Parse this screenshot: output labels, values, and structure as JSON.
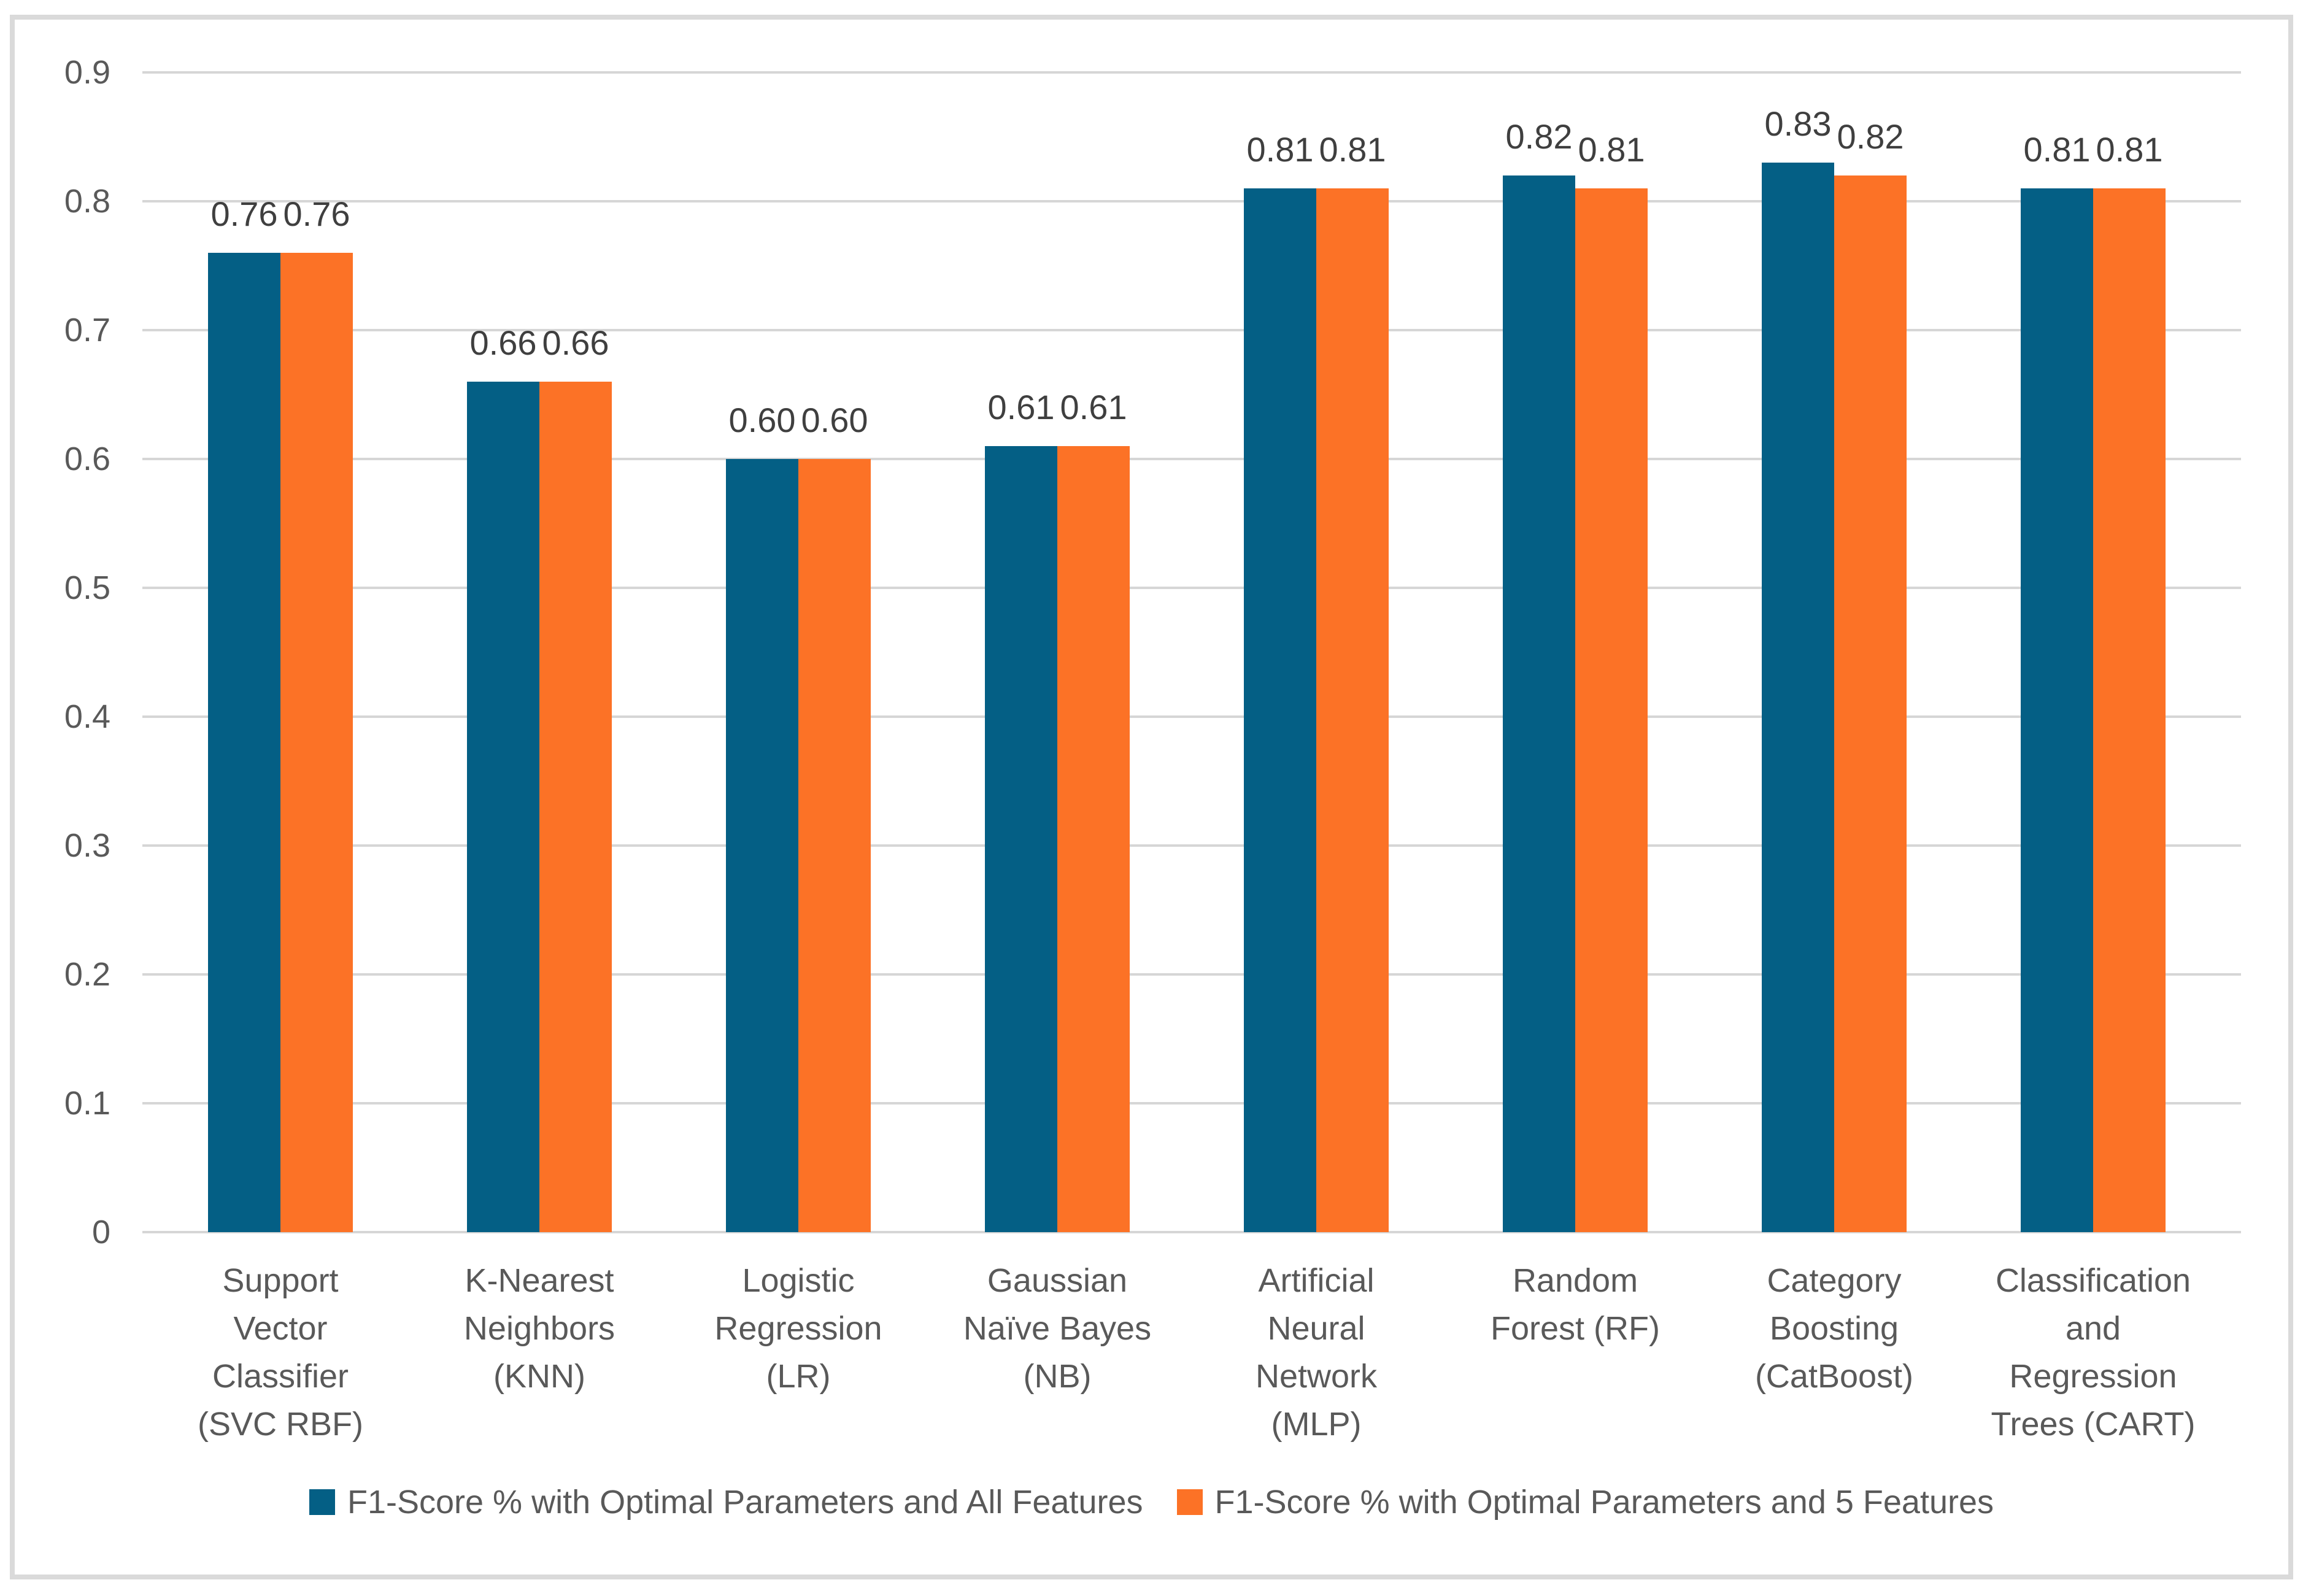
{
  "chart_data": {
    "type": "bar",
    "title": "",
    "xlabel": "",
    "ylabel": "",
    "categories": [
      "Support\nVector\nClassifier\n(SVC RBF)",
      "K-Nearest\nNeighbors\n(KNN)",
      "Logistic\nRegression\n(LR)",
      "Gaussian\nNaïve Bayes\n(NB)",
      "Artificial\nNeural\nNetwork\n(MLP)",
      "Random\nForest (RF)",
      "Category\nBoosting\n(CatBoost)",
      "Classification\nand\nRegression\nTrees (CART)"
    ],
    "series": [
      {
        "name": "F1-Score % with Optimal Parameters and All Features",
        "color": "#045F85",
        "values": [
          0.76,
          0.66,
          0.6,
          0.61,
          0.81,
          0.82,
          0.83,
          0.81
        ],
        "labels": [
          "0.76",
          "0.66",
          "0.60",
          "0.61",
          "0.81",
          "0.82",
          "0.83",
          "0.81"
        ]
      },
      {
        "name": "F1-Score % with Optimal Parameters and 5 Features",
        "color": "#FC7226",
        "values": [
          0.76,
          0.66,
          0.6,
          0.61,
          0.81,
          0.81,
          0.82,
          0.81
        ],
        "labels": [
          "0.76",
          "0.66",
          "0.60",
          "0.61",
          "0.81",
          "0.81",
          "0.82",
          "0.81"
        ]
      }
    ],
    "yticks": [
      "0",
      "0.1",
      "0.2",
      "0.3",
      "0.4",
      "0.5",
      "0.6",
      "0.7",
      "0.8",
      "0.9"
    ],
    "ylim": [
      0,
      0.9
    ],
    "grid": true,
    "legend_position": "bottom",
    "colors": {
      "gridline": "#D6D6D6",
      "frame_border": "#DADADA",
      "tick_text": "#595959",
      "data_label_text": "#3F3F3F",
      "legend_text": "#595959",
      "background": "#FFFFFF"
    }
  }
}
